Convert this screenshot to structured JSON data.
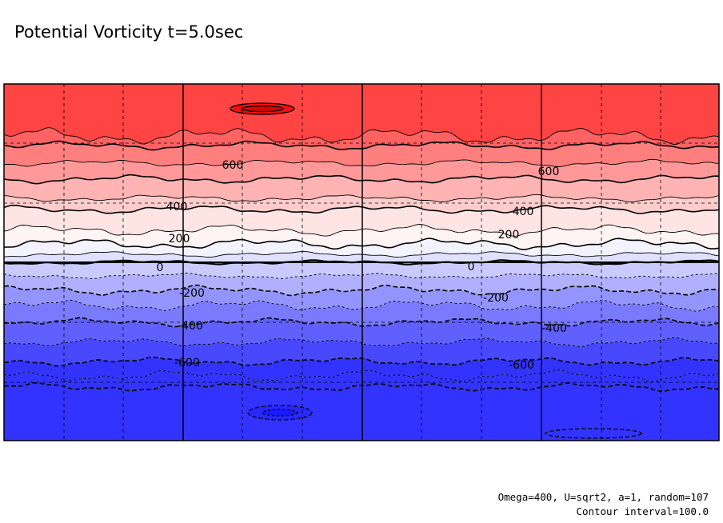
{
  "chart_data": {
    "type": "heatmap",
    "title": "Potential Vorticity t=5.0sec",
    "annotations": [
      "Omega=400, U=sqrt2, a=1, random=107",
      "Contour interval=100.0"
    ],
    "contour_interval": 100.0,
    "band_levels": [
      900,
      800,
      700,
      600,
      500,
      400,
      300,
      200,
      100,
      0,
      -100,
      -200,
      -300,
      -400,
      -500,
      -600,
      -700,
      -800
    ],
    "band_colors": [
      "#ff4444",
      "#ff6262",
      "#ff7e7e",
      "#ff9999",
      "#ffb3b3",
      "#ffcccc",
      "#ffe4e4",
      "#fff4f4",
      "#f3f3ff",
      "#e0e0ff",
      "#cacaff",
      "#b0b0ff",
      "#9494ff",
      "#7a7aff",
      "#6060ff",
      "#4848ff",
      "#3333ff"
    ],
    "contour_labels": [
      {
        "text": "600",
        "value": 600
      },
      {
        "text": "600",
        "value": 600
      },
      {
        "text": "400",
        "value": 400
      },
      {
        "text": "400",
        "value": 400
      },
      {
        "text": "200",
        "value": 200
      },
      {
        "text": "200",
        "value": 200
      },
      {
        "text": "0",
        "value": 0
      },
      {
        "text": "0",
        "value": 0
      },
      {
        "text": "-200",
        "value": -200
      },
      {
        "text": "-200",
        "value": -200
      },
      {
        "text": "-400",
        "value": -400
      },
      {
        "text": "-400",
        "value": -400
      },
      {
        "text": "-600",
        "value": -600
      },
      {
        "text": "-600",
        "value": -600
      }
    ],
    "grid": true,
    "legend": "none"
  }
}
